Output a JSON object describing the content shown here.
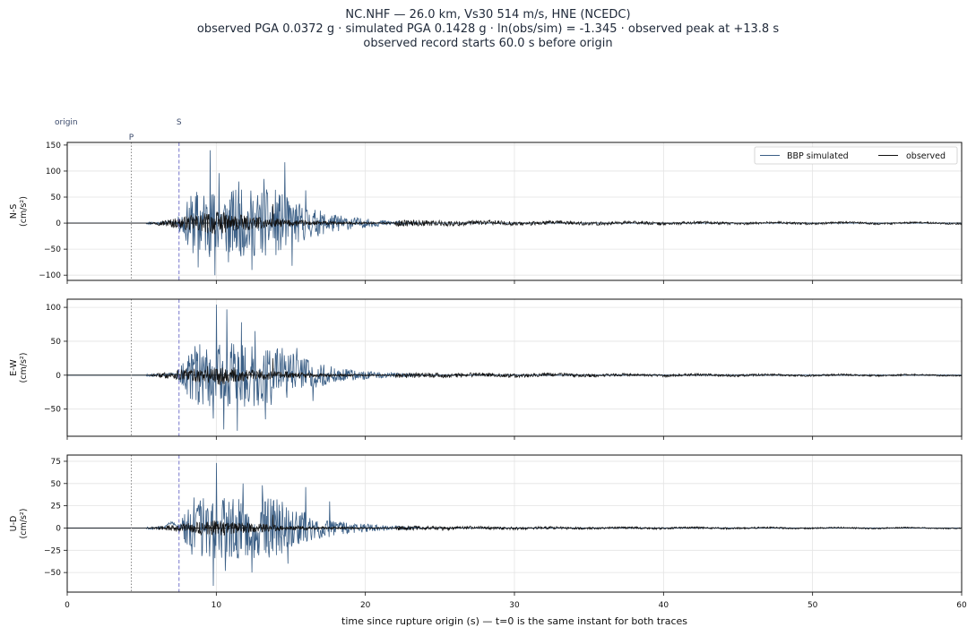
{
  "title_lines": [
    "NC.NHF  —  26.0 km, Vs30 514 m/s, HNE (NCEDC)",
    "observed PGA 0.0372 g   ·   simulated PGA 0.1428 g   ·   ln(obs/sim) = -1.345   ·   observed peak at +13.8 s",
    "observed record starts 60.0 s before origin"
  ],
  "chart_data": {
    "type": "line",
    "xlabel": "time since rupture origin (s)   —   t=0 is the same instant for both traces",
    "xlim": [
      0,
      60
    ],
    "xticks": [
      0,
      10,
      20,
      30,
      40,
      50,
      60
    ],
    "grid": true,
    "legend": {
      "placement": "top-right",
      "entries": [
        "BBP simulated",
        "observed"
      ]
    },
    "colors": {
      "simulated": "#3b5f86",
      "observed": "#111111",
      "p_marker": "#888888",
      "s_marker": "#7777cc",
      "marker_text": "#3b4a6b"
    },
    "phase_markers": [
      {
        "label": "origin",
        "t": 0
      },
      {
        "label": "P",
        "t": 4.3
      },
      {
        "label": "S",
        "t": 7.5
      }
    ],
    "panels": [
      {
        "component": "N-S",
        "ylabel": "N-S\n(cm/s²)",
        "ylim": [
          -110,
          155
        ],
        "yticks": [
          -100,
          -50,
          0,
          50,
          100,
          150
        ],
        "series": [
          {
            "name": "BBP simulated",
            "start": 5.3,
            "end": 23.5,
            "peak_time": 9.6,
            "peak_value": 140,
            "spikes": [
              [
                9.6,
                140
              ],
              [
                14.6,
                117
              ],
              [
                10.2,
                96
              ],
              [
                9.9,
                -100
              ],
              [
                11.5,
                80
              ],
              [
                13.2,
                85
              ],
              [
                16.0,
                63
              ],
              [
                12.4,
                -90
              ],
              [
                15.1,
                -82
              ],
              [
                8.8,
                -85
              ],
              [
                10.8,
                -75
              ]
            ]
          },
          {
            "name": "observed",
            "start": 5.3,
            "end": 60,
            "peak_time": 13.8,
            "peak_value": 36.5
          }
        ]
      },
      {
        "component": "E-W",
        "ylabel": "E-W\n(cm/s²)",
        "ylim": [
          -90,
          112
        ],
        "yticks": [
          -50,
          0,
          50,
          100
        ],
        "series": [
          {
            "name": "BBP simulated",
            "start": 5.3,
            "end": 23.5,
            "peak_time": 10.0,
            "peak_value": 104,
            "spikes": [
              [
                10.0,
                104
              ],
              [
                10.7,
                97
              ],
              [
                11.7,
                78
              ],
              [
                12.6,
                65
              ],
              [
                13.3,
                -65
              ],
              [
                10.5,
                -80
              ],
              [
                11.4,
                -82
              ],
              [
                9.8,
                -64
              ],
              [
                15.4,
                40
              ],
              [
                16.5,
                -38
              ]
            ]
          },
          {
            "name": "observed",
            "start": 5.3,
            "end": 60,
            "peak_time": 13.8,
            "peak_value": 25
          }
        ]
      },
      {
        "component": "U-D",
        "ylabel": "U-D\n(cm/s²)",
        "ylim": [
          -72,
          82
        ],
        "yticks": [
          -50,
          -25,
          0,
          25,
          50,
          75
        ],
        "series": [
          {
            "name": "BBP simulated",
            "start": 5.3,
            "end": 23.5,
            "peak_time": 10.0,
            "peak_value": 73,
            "spikes": [
              [
                10.0,
                73
              ],
              [
                9.8,
                -65
              ],
              [
                11.8,
                50
              ],
              [
                13.1,
                48
              ],
              [
                16.0,
                46
              ],
              [
                12.4,
                -50
              ],
              [
                14.8,
                -40
              ],
              [
                10.6,
                -48
              ],
              [
                17.6,
                30
              ]
            ]
          },
          {
            "name": "observed",
            "start": 5.3,
            "end": 60,
            "peak_time": 13.8,
            "peak_value": 15
          }
        ]
      }
    ]
  }
}
